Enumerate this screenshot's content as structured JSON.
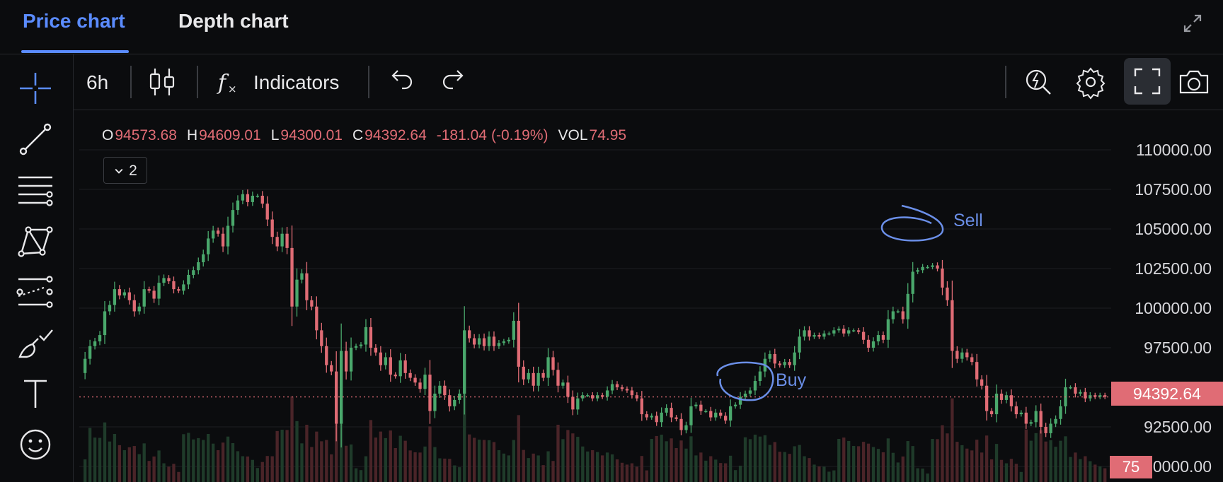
{
  "tabs": [
    {
      "label": "Price chart",
      "active": true
    },
    {
      "label": "Depth chart",
      "active": false
    }
  ],
  "toolbar": {
    "interval": "6h",
    "indicators": "Indicators"
  },
  "ohlc": {
    "o_key": "O",
    "o": "94573.68",
    "h_key": "H",
    "h": "94609.01",
    "l_key": "L",
    "l": "94300.01",
    "c_key": "C",
    "c": "94392.64",
    "change": "-181.04",
    "change_pct": "(-0.19%)",
    "vol_key": "VOL",
    "vol": "74.95"
  },
  "indicator_count": "2",
  "price_tag": "94392.64",
  "volume_tag": "75",
  "annotations": {
    "sell": "Sell",
    "buy": "Buy"
  },
  "colors": {
    "accent": "#5b8cff",
    "up": "#4aa86c",
    "down": "#e06c75",
    "annotation": "#6b8fe8"
  },
  "chart_data": {
    "type": "candlestick",
    "y_ticks": [
      "110000.00",
      "107500.00",
      "105000.00",
      "102500.00",
      "100000.00",
      "97500.00",
      "95000.00",
      "92500.00",
      "90000.00"
    ],
    "ylim": [
      89800,
      110300
    ],
    "current_price": 94392.64,
    "closes": [
      96800,
      97600,
      97900,
      98300,
      99800,
      100200,
      101200,
      100800,
      101000,
      100500,
      99800,
      100100,
      101200,
      101100,
      100600,
      101600,
      101900,
      101700,
      101200,
      101100,
      101500,
      102100,
      102400,
      102900,
      103400,
      104400,
      104900,
      104700,
      103900,
      105200,
      106200,
      106800,
      107200,
      106700,
      107100,
      107100,
      106600,
      105600,
      104500,
      103900,
      104700,
      103800,
      100100,
      101800,
      102200,
      100500,
      100100,
      98600,
      97600,
      96400,
      96000,
      92700,
      97300,
      96000,
      97500,
      97600,
      97700,
      98800,
      97500,
      97200,
      96400,
      96900,
      95800,
      95700,
      96700,
      95900,
      95600,
      95300,
      94900,
      95800,
      93500,
      94600,
      95100,
      94500,
      93800,
      94200,
      94600,
      98600,
      98100,
      97700,
      98100,
      97600,
      98200,
      97600,
      97800,
      97900,
      98000,
      99200,
      96300,
      95500,
      95900,
      95100,
      95900,
      95600,
      96900,
      96100,
      95100,
      95300,
      94400,
      93600,
      94300,
      94500,
      94500,
      94300,
      94500,
      94400,
      94800,
      95200,
      95000,
      94900,
      94800,
      94500,
      94300,
      93300,
      93100,
      93200,
      92800,
      93400,
      93700,
      93100,
      93000,
      92300,
      92600,
      93800,
      93900,
      93500,
      93500,
      93100,
      93400,
      93200,
      92900,
      93800,
      93900,
      94400,
      94600,
      94800,
      95400,
      96000,
      96800,
      97100,
      96500,
      96400,
      96600,
      96400,
      97200,
      98200,
      98600,
      98200,
      98300,
      98200,
      98400,
      98400,
      98600,
      98700,
      98400,
      98600,
      98600,
      98500,
      98000,
      97500,
      97900,
      98300,
      98000,
      99300,
      99800,
      99800,
      99300,
      100900,
      102300,
      102400,
      102600,
      102600,
      102700,
      102500,
      101300,
      100500,
      97300,
      96800,
      97200,
      96900,
      96600,
      95500,
      95100,
      93500,
      93300,
      94600,
      94200,
      94500,
      93800,
      93300,
      93400,
      92700,
      92800,
      93500,
      92500,
      92100,
      92700,
      93000,
      93800,
      95000,
      95000,
      94600,
      94700,
      94300,
      94500,
      94400,
      94500,
      94400
    ]
  }
}
